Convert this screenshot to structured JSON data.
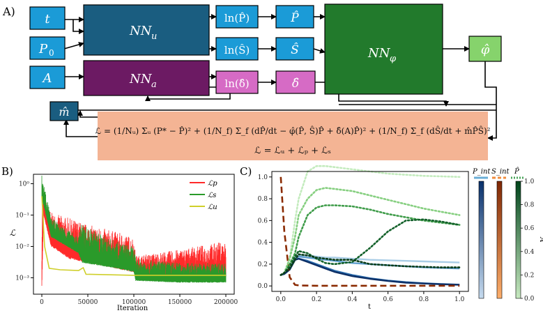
{
  "panelA": {
    "label": "A)",
    "inputs": [
      "t",
      "P",
      "A"
    ],
    "input_sub": "0",
    "nn_u": "NN",
    "nn_u_sub": "u",
    "nn_a": "NN",
    "nn_a_sub": "a",
    "nn_phi": "NN",
    "nn_phi_sub": "φ",
    "ln_p": "ln(P̂)",
    "ln_s": "ln(Ŝ)",
    "ln_delta": "ln(δ̂)",
    "p_hat": "P̂",
    "s_hat": "Ŝ",
    "delta_hat": "δ̂",
    "phi_hat": "φ̂",
    "m_hat": "m̂",
    "loss_eq1": "ℒ = (1/Nᵤ) Σᵤ (P* − P̂)² + (1/N_f) Σ_f (dP̂/dt − φ̂(P̂, Ŝ)P̂ + δ̂(A)P̂)² + (1/N_f) Σ_f (dŜ/dt + m̂P̂Ŝ)²",
    "loss_eq2": "ℒ = ℒᵤ + ℒₚ + ℒₛ",
    "colors": {
      "blue": "#1b9bd7",
      "navy": "#1a5d80",
      "purple": "#6c1a63",
      "pink": "#d66bc5",
      "green": "#227a2c",
      "lightgreen": "#86d36c",
      "salmon": "#f4b494"
    }
  },
  "panelB": {
    "label": "B)",
    "ylabel": "ℒ",
    "xlabel": "Iteration",
    "legend": [
      "ℒp",
      "ℒs",
      "ℒu"
    ]
  },
  "panelC": {
    "label": "C)",
    "xlabel": "t",
    "colorbar_titles": [
      "P_int",
      "S_int",
      "P̂"
    ],
    "colorbar_label": "A"
  },
  "chart_data": [
    {
      "type": "line",
      "panel": "B",
      "xlabel": "Iteration",
      "ylabel": "ℒ",
      "yscale": "log",
      "xlim": [
        0,
        200000
      ],
      "ylim": [
        0.0003,
        2
      ],
      "xticks": [
        "0",
        "50000",
        "100000",
        "150000",
        "200000"
      ],
      "yticks": [
        "10⁰",
        "10⁻¹",
        "10⁻²",
        "10⁻³"
      ],
      "legend_position": "upper-right",
      "series": [
        {
          "name": "ℒp",
          "color": "#ff2a2a",
          "x": [
            0,
            2000,
            10000,
            30000,
            50000,
            80000,
            99000,
            100000,
            102000,
            150000,
            200000
          ],
          "y_upper": [
            0.5,
            0.4,
            0.12,
            0.08,
            0.05,
            0.03,
            0.02,
            0.02,
            0.005,
            0.008,
            0.015
          ],
          "y_lower": [
            0.0004,
            0.1,
            0.01,
            0.004,
            0.003,
            0.002,
            0.0015,
            0.0015,
            0.0012,
            0.0011,
            0.001
          ]
        },
        {
          "name": "ℒs",
          "color": "#2a9a2a",
          "x": [
            0,
            2000,
            10000,
            40000,
            42000,
            44000,
            80000,
            100000,
            102000,
            150000,
            200000
          ],
          "y_upper": [
            2,
            1.2,
            0.08,
            0.02,
            0.08,
            0.05,
            0.015,
            0.01,
            0.004,
            0.003,
            0.003
          ],
          "y_lower": [
            0.3,
            0.2,
            0.02,
            0.006,
            0.004,
            0.003,
            0.002,
            0.0015,
            0.0008,
            0.0007,
            0.0007
          ]
        },
        {
          "name": "ℒu",
          "color": "#cfcf2a",
          "x": [
            0,
            3000,
            8000,
            20000,
            40000,
            45000,
            48000,
            100000,
            150000,
            200000
          ],
          "y": [
            0.4,
            0.01,
            0.002,
            0.0018,
            0.0017,
            0.0021,
            0.0013,
            0.0012,
            0.0012,
            0.0012
          ]
        }
      ]
    },
    {
      "type": "line",
      "panel": "C",
      "xlabel": "t",
      "xlim": [
        -0.05,
        1.05
      ],
      "ylim": [
        -0.05,
        1.05
      ],
      "xticks": [
        "0.0",
        "0.2",
        "0.4",
        "0.6",
        "0.8",
        "1.0"
      ],
      "yticks": [
        "0.0",
        "0.2",
        "0.4",
        "0.6",
        "0.8",
        "1.0"
      ],
      "x": [
        0,
        0.02,
        0.05,
        0.08,
        0.1,
        0.15,
        0.2,
        0.25,
        0.3,
        0.4,
        0.5,
        0.6,
        0.7,
        0.8,
        0.9,
        1.0
      ],
      "series": [
        {
          "name": "P_int (A=0.2)",
          "style": "solid",
          "color": "#a9cde6",
          "y": [
            0.1,
            0.11,
            0.15,
            0.26,
            0.28,
            0.28,
            0.27,
            0.26,
            0.26,
            0.25,
            0.24,
            0.235,
            0.23,
            0.225,
            0.22,
            0.215
          ]
        },
        {
          "name": "P_int (A=0.4)",
          "style": "solid",
          "color": "#5f9fcf",
          "y": [
            0.1,
            0.11,
            0.15,
            0.25,
            0.27,
            0.26,
            0.25,
            0.24,
            0.23,
            0.21,
            0.2,
            0.19,
            0.18,
            0.17,
            0.165,
            0.16
          ]
        },
        {
          "name": "P_int (A=0.7)",
          "style": "solid",
          "color": "#2b6eaf",
          "y": [
            0.1,
            0.11,
            0.15,
            0.24,
            0.25,
            0.23,
            0.2,
            0.17,
            0.14,
            0.1,
            0.07,
            0.05,
            0.035,
            0.025,
            0.018,
            0.012
          ]
        },
        {
          "name": "P_int (A=1.0)",
          "style": "solid",
          "color": "#0d2f66",
          "y": [
            0.1,
            0.11,
            0.15,
            0.24,
            0.25,
            0.22,
            0.19,
            0.16,
            0.13,
            0.09,
            0.065,
            0.045,
            0.03,
            0.022,
            0.015,
            0.01
          ]
        },
        {
          "name": "S_int",
          "style": "dashed",
          "color": "#8a2a00",
          "y": [
            1.0,
            0.5,
            0.08,
            0.01,
            0.005,
            0.003,
            0.002,
            0.002,
            0.002,
            0.002,
            0.002,
            0.002,
            0.002,
            0.002,
            0.002,
            0.002
          ]
        },
        {
          "name": "P̂ (A=0.1)",
          "style": "dotted",
          "color": "#c3ebbd",
          "y": [
            0.1,
            0.12,
            0.25,
            0.6,
            0.8,
            1.05,
            1.1,
            1.1,
            1.09,
            1.07,
            1.05,
            1.03,
            1.02,
            1.01,
            1.005,
            1.0
          ]
        },
        {
          "name": "P̂ (A=0.3)",
          "style": "dotted",
          "color": "#86cf80",
          "y": [
            0.1,
            0.12,
            0.25,
            0.45,
            0.65,
            0.8,
            0.88,
            0.9,
            0.89,
            0.87,
            0.83,
            0.79,
            0.75,
            0.71,
            0.68,
            0.65
          ]
        },
        {
          "name": "P̂ (A=0.6)",
          "style": "dotted",
          "color": "#3f9c4a",
          "y": [
            0.1,
            0.12,
            0.2,
            0.3,
            0.45,
            0.65,
            0.72,
            0.74,
            0.74,
            0.73,
            0.7,
            0.66,
            0.63,
            0.6,
            0.58,
            0.56
          ]
        },
        {
          "name": "P̂ (A=0.8)",
          "style": "dotted",
          "color": "#13612a",
          "y": [
            0.1,
            0.12,
            0.18,
            0.27,
            0.32,
            0.3,
            0.25,
            0.21,
            0.2,
            0.22,
            0.35,
            0.5,
            0.6,
            0.61,
            0.59,
            0.56
          ]
        },
        {
          "name": "P̂ (A=1.0)",
          "style": "dotted",
          "color": "#0a3d1a",
          "y": [
            0.1,
            0.12,
            0.16,
            0.24,
            0.29,
            0.28,
            0.26,
            0.25,
            0.24,
            0.24,
            0.2,
            0.19,
            0.18,
            0.175,
            0.17,
            0.17
          ]
        }
      ]
    }
  ]
}
